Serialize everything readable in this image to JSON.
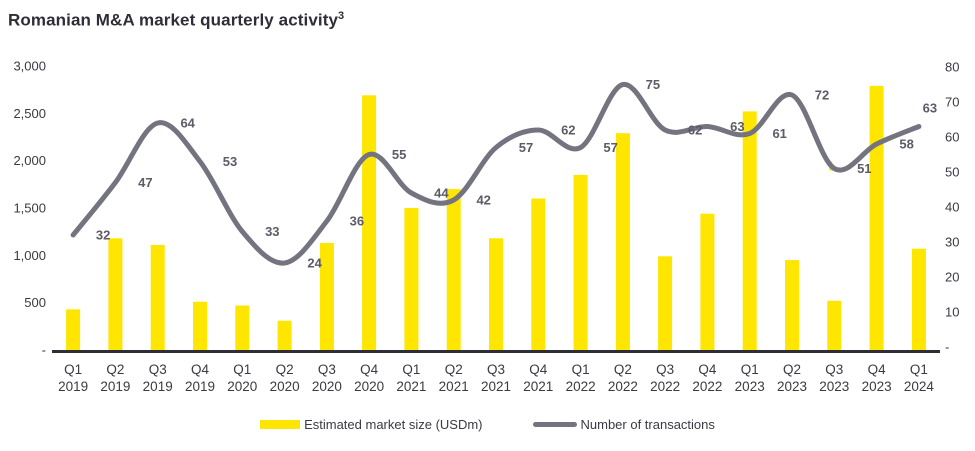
{
  "title": {
    "text": "Romanian M&A market quarterly activity",
    "superscript": "3"
  },
  "legend": [
    {
      "label": "Estimated market size (USDm)",
      "swatch": "bar",
      "color": "#FFE600"
    },
    {
      "label": "Number of transactions",
      "swatch": "line",
      "color": "#747480"
    }
  ],
  "colors": {
    "background": "#FFFFFF",
    "bar": "#FFE600",
    "line": "#747480",
    "title_text": "#2E2E38",
    "axis_text": "#3A3A44",
    "data_label_text": "#5C5C68",
    "axis_line": "#2E2E38"
  },
  "chart_data": {
    "type": "bar",
    "title": "Romanian M&A market quarterly activity",
    "categories": [
      "Q1 2019",
      "Q2 2019",
      "Q3 2019",
      "Q4 2019",
      "Q1 2020",
      "Q2 2020",
      "Q3 2020",
      "Q4 2020",
      "Q1 2021",
      "Q2 2021",
      "Q3 2021",
      "Q4 2021",
      "Q1 2022",
      "Q2 2022",
      "Q3 2022",
      "Q4 2022",
      "Q1 2023",
      "Q2 2023",
      "Q3 2023",
      "Q4 2023",
      "Q1 2024"
    ],
    "series": [
      {
        "name": "Estimated market size (USDm)",
        "type": "bar",
        "axis": "left",
        "color": "#FFE600",
        "values": [
          430,
          1180,
          1110,
          510,
          470,
          310,
          1130,
          2690,
          1500,
          1700,
          1180,
          1600,
          1850,
          2290,
          990,
          1440,
          2520,
          950,
          520,
          2790,
          1070
        ]
      },
      {
        "name": "Number of transactions",
        "type": "line",
        "axis": "right",
        "color": "#747480",
        "smooth": true,
        "data_labels": true,
        "values": [
          32,
          47,
          64,
          53,
          33,
          24,
          36,
          55,
          44,
          42,
          57,
          62,
          57,
          75,
          62,
          63,
          61,
          72,
          51,
          58,
          63
        ]
      }
    ],
    "left_axis": {
      "min": 0,
      "max": 3000,
      "tick_step": 500,
      "tick_labels": [
        "3,000",
        "2,500",
        "2,000",
        "1,500",
        "1,000",
        "500",
        "-"
      ]
    },
    "right_axis": {
      "min": 0,
      "max": 80,
      "tick_step": 10,
      "tick_labels": [
        "80",
        "70",
        "60",
        "50",
        "40",
        "30",
        "20",
        "10",
        "-"
      ]
    },
    "grid": false,
    "legend_position": "bottom",
    "annotations": [
      {
        "type": "yellow-corner-mark",
        "category": "Q3 2023"
      }
    ]
  }
}
